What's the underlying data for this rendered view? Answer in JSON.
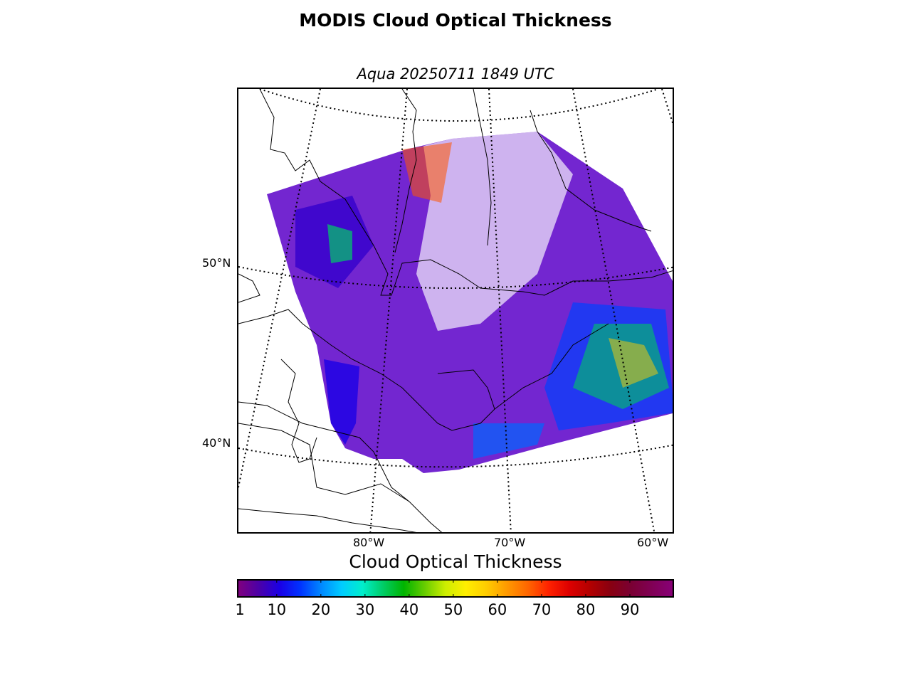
{
  "title": "MODIS Cloud Optical Thickness",
  "subtitle": "Aqua 20250711 1849 UTC",
  "map": {
    "lat_labels": [
      "50°N",
      "40°N"
    ],
    "lon_labels": [
      "80°W",
      "70°W",
      "60°W"
    ],
    "projection": "lambert-conformal",
    "graticule": "dotted",
    "coastline_color": "#000000",
    "no_data_color": "#ffffff"
  },
  "colorbar": {
    "label": "Cloud Optical Thickness",
    "min": 1,
    "max": 100,
    "tick_labels": [
      "1",
      "10",
      "20",
      "30",
      "40",
      "50",
      "60",
      "70",
      "80",
      "90"
    ],
    "tick_values": [
      1,
      10,
      20,
      30,
      40,
      50,
      60,
      70,
      80,
      90
    ],
    "colors": [
      "#7f007f",
      "#4b00a8",
      "#1a00e6",
      "#0033ff",
      "#0088ff",
      "#00ccff",
      "#00eecc",
      "#00cc66",
      "#00b400",
      "#66cc00",
      "#ccee00",
      "#ffee00",
      "#ffcc00",
      "#ff9900",
      "#ff6600",
      "#ff2200",
      "#dd0000",
      "#b30000",
      "#880011",
      "#7a0033",
      "#800055",
      "#880077"
    ]
  }
}
